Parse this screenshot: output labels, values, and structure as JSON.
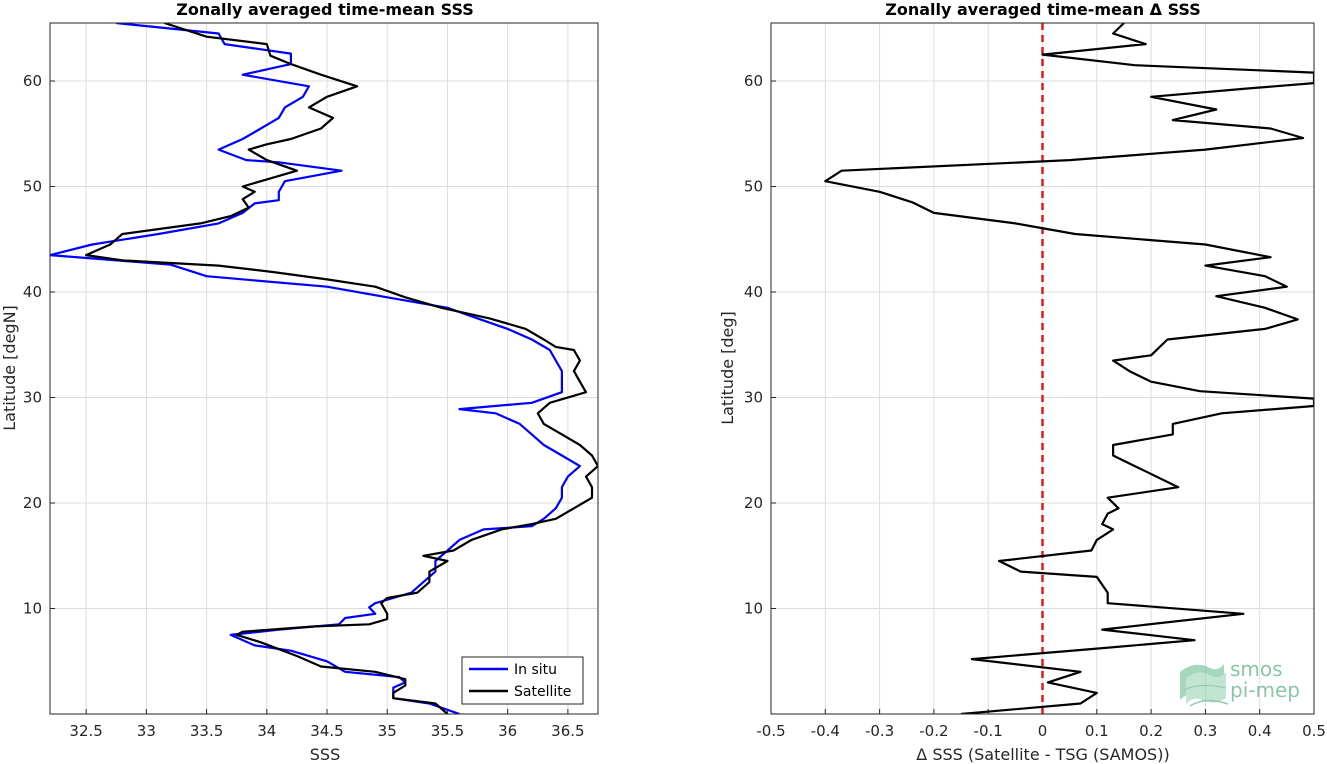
{
  "chart_data": [
    {
      "type": "line",
      "title": "Zonally averaged time-mean SSS",
      "xlabel": "SSS",
      "ylabel": "Latitude [degN]",
      "xlim": [
        32.2,
        36.75
      ],
      "ylim": [
        0,
        65.5
      ],
      "xticks": [
        "32.5",
        "33",
        "33.5",
        "34",
        "34.5",
        "35",
        "35.5",
        "36",
        "36.5"
      ],
      "yticks": [
        "10",
        "20",
        "30",
        "40",
        "50",
        "60"
      ],
      "grid": true,
      "legend": "bottom-right",
      "series": [
        {
          "name": "In situ",
          "color": "#0000ff",
          "points": [
            [
              32.75,
              65.5
            ],
            [
              33.6,
              64.5
            ],
            [
              33.65,
              63.5
            ],
            [
              34.2,
              62.6
            ],
            [
              34.2,
              61.6
            ],
            [
              33.8,
              60.6
            ],
            [
              34.35,
              59.5
            ],
            [
              34.3,
              58.5
            ],
            [
              34.15,
              57.5
            ],
            [
              34.1,
              56.5
            ],
            [
              33.95,
              55.5
            ],
            [
              33.8,
              54.5
            ],
            [
              33.6,
              53.5
            ],
            [
              33.83,
              52.5
            ],
            [
              34.1,
              52.3
            ],
            [
              34.62,
              51.5
            ],
            [
              34.15,
              50.5
            ],
            [
              34.1,
              49.5
            ],
            [
              34.1,
              48.7
            ],
            [
              33.9,
              48.4
            ],
            [
              33.8,
              47.5
            ],
            [
              33.6,
              46.5
            ],
            [
              33.1,
              45.5
            ],
            [
              32.55,
              44.5
            ],
            [
              32.2,
              43.5
            ],
            [
              33.2,
              42.6
            ],
            [
              33.5,
              41.5
            ],
            [
              34.5,
              40.5
            ],
            [
              35.0,
              39.5
            ],
            [
              35.5,
              38.5
            ],
            [
              35.75,
              37.5
            ],
            [
              36.0,
              36.5
            ],
            [
              36.2,
              35.5
            ],
            [
              36.35,
              34.5
            ],
            [
              36.4,
              33.5
            ],
            [
              36.45,
              32.5
            ],
            [
              36.45,
              31.5
            ],
            [
              36.45,
              30.5
            ],
            [
              36.2,
              29.5
            ],
            [
              35.6,
              28.9
            ],
            [
              35.9,
              28.5
            ],
            [
              36.1,
              27.5
            ],
            [
              36.2,
              26.5
            ],
            [
              36.3,
              25.5
            ],
            [
              36.45,
              24.5
            ],
            [
              36.6,
              23.5
            ],
            [
              36.5,
              22.5
            ],
            [
              36.45,
              21.5
            ],
            [
              36.45,
              20.5
            ],
            [
              36.4,
              19.5
            ],
            [
              36.3,
              18.5
            ],
            [
              36.2,
              17.8
            ],
            [
              35.8,
              17.5
            ],
            [
              35.6,
              16.5
            ],
            [
              35.5,
              15.5
            ],
            [
              35.4,
              14.5
            ],
            [
              35.4,
              13.5
            ],
            [
              35.3,
              12.5
            ],
            [
              35.2,
              11.5
            ],
            [
              34.9,
              10.5
            ],
            [
              34.85,
              10.1
            ],
            [
              34.9,
              9.5
            ],
            [
              34.65,
              9.1
            ],
            [
              34.6,
              8.5
            ],
            [
              34.1,
              8.0
            ],
            [
              33.7,
              7.5
            ],
            [
              33.9,
              6.5
            ],
            [
              34.2,
              6.0
            ],
            [
              34.5,
              5.0
            ],
            [
              34.65,
              4.0
            ],
            [
              35.1,
              3.5
            ],
            [
              35.15,
              3.0
            ],
            [
              35.05,
              2.5
            ],
            [
              35.05,
              1.5
            ],
            [
              35.35,
              1.0
            ],
            [
              35.6,
              0.0
            ]
          ]
        },
        {
          "name": "Satellite",
          "color": "#000000",
          "points": [
            [
              33.15,
              65.5
            ],
            [
              33.5,
              64.2
            ],
            [
              34.0,
              63.5
            ],
            [
              34.03,
              62.4
            ],
            [
              34.2,
              61.6
            ],
            [
              34.45,
              60.6
            ],
            [
              34.75,
              59.5
            ],
            [
              34.5,
              58.5
            ],
            [
              34.35,
              57.5
            ],
            [
              34.55,
              56.5
            ],
            [
              34.45,
              55.5
            ],
            [
              34.2,
              54.5
            ],
            [
              34.0,
              54.0
            ],
            [
              33.85,
              53.5
            ],
            [
              34.0,
              52.5
            ],
            [
              34.25,
              51.5
            ],
            [
              33.95,
              50.5
            ],
            [
              33.8,
              50.0
            ],
            [
              33.9,
              49.5
            ],
            [
              33.8,
              48.8
            ],
            [
              33.85,
              48.0
            ],
            [
              33.7,
              47.2
            ],
            [
              33.45,
              46.5
            ],
            [
              32.8,
              45.5
            ],
            [
              32.75,
              45.0
            ],
            [
              32.7,
              44.5
            ],
            [
              32.5,
              43.5
            ],
            [
              32.8,
              43.0
            ],
            [
              33.6,
              42.5
            ],
            [
              34.05,
              41.9
            ],
            [
              34.5,
              41.2
            ],
            [
              34.9,
              40.5
            ],
            [
              35.15,
              39.5
            ],
            [
              35.45,
              38.5
            ],
            [
              35.85,
              37.5
            ],
            [
              36.15,
              36.5
            ],
            [
              36.3,
              35.5
            ],
            [
              36.4,
              34.8
            ],
            [
              36.55,
              34.5
            ],
            [
              36.6,
              33.5
            ],
            [
              36.55,
              32.5
            ],
            [
              36.6,
              31.5
            ],
            [
              36.65,
              30.5
            ],
            [
              36.35,
              29.5
            ],
            [
              36.25,
              28.5
            ],
            [
              36.3,
              27.5
            ],
            [
              36.45,
              26.5
            ],
            [
              36.6,
              25.5
            ],
            [
              36.7,
              24.5
            ],
            [
              36.75,
              23.5
            ],
            [
              36.65,
              22.5
            ],
            [
              36.7,
              21.5
            ],
            [
              36.7,
              20.5
            ],
            [
              36.55,
              19.5
            ],
            [
              36.4,
              18.5
            ],
            [
              36.2,
              18.0
            ],
            [
              35.95,
              17.5
            ],
            [
              35.7,
              16.5
            ],
            [
              35.55,
              15.5
            ],
            [
              35.3,
              15.0
            ],
            [
              35.5,
              14.5
            ],
            [
              35.35,
              13.5
            ],
            [
              35.35,
              12.5
            ],
            [
              35.25,
              11.5
            ],
            [
              35.0,
              11.0
            ],
            [
              34.95,
              10.5
            ],
            [
              35.0,
              9.5
            ],
            [
              35.0,
              9.0
            ],
            [
              34.85,
              8.5
            ],
            [
              34.4,
              8.3
            ],
            [
              33.8,
              7.8
            ],
            [
              33.75,
              7.5
            ],
            [
              33.95,
              6.8
            ],
            [
              34.25,
              5.5
            ],
            [
              34.45,
              4.5
            ],
            [
              34.9,
              4.0
            ],
            [
              35.15,
              3.3
            ],
            [
              35.15,
              2.7
            ],
            [
              35.05,
              2.0
            ],
            [
              35.05,
              1.5
            ],
            [
              35.4,
              1.0
            ],
            [
              35.5,
              0.0
            ]
          ]
        }
      ]
    },
    {
      "type": "line",
      "title": "Zonally averaged time-mean Δ SSS",
      "xlabel": "Δ SSS (Satellite - TSG (SAMOS))",
      "ylabel": "Latitude [deg]",
      "xlim": [
        -0.5,
        0.5
      ],
      "ylim": [
        0,
        65.5
      ],
      "xticks": [
        "-0.5",
        "-0.4",
        "-0.3",
        "-0.2",
        "-0.1",
        "0",
        "0.1",
        "0.2",
        "0.3",
        "0.4",
        "0.5"
      ],
      "yticks": [
        "10",
        "20",
        "30",
        "40",
        "50",
        "60"
      ],
      "grid": true,
      "reference_line": {
        "x": 0,
        "color": "#e31a1c",
        "style": "dashed"
      },
      "series": [
        {
          "color": "#000000",
          "points": [
            [
              0.15,
              65.5
            ],
            [
              0.13,
              64.5
            ],
            [
              0.19,
              63.5
            ],
            [
              0.0,
              62.5
            ],
            [
              0.17,
              61.5
            ],
            [
              0.5,
              60.8
            ],
            [
              0.5,
              59.8
            ],
            [
              0.38,
              59.3
            ],
            [
              0.2,
              58.5
            ],
            [
              0.32,
              57.3
            ],
            [
              0.24,
              56.3
            ],
            [
              0.42,
              55.5
            ],
            [
              0.48,
              54.6
            ],
            [
              0.3,
              53.5
            ],
            [
              0.05,
              52.5
            ],
            [
              -0.37,
              51.5
            ],
            [
              -0.4,
              50.5
            ],
            [
              -0.3,
              49.5
            ],
            [
              -0.24,
              48.5
            ],
            [
              -0.2,
              47.5
            ],
            [
              -0.05,
              46.5
            ],
            [
              0.06,
              45.5
            ],
            [
              0.3,
              44.5
            ],
            [
              0.42,
              43.3
            ],
            [
              0.3,
              42.5
            ],
            [
              0.41,
              41.5
            ],
            [
              0.45,
              40.5
            ],
            [
              0.32,
              39.6
            ],
            [
              0.41,
              38.5
            ],
            [
              0.47,
              37.4
            ],
            [
              0.41,
              36.5
            ],
            [
              0.23,
              35.5
            ],
            [
              0.2,
              34.0
            ],
            [
              0.13,
              33.5
            ],
            [
              0.16,
              32.5
            ],
            [
              0.2,
              31.5
            ],
            [
              0.29,
              30.6
            ],
            [
              0.5,
              29.9
            ],
            [
              0.5,
              29.2
            ],
            [
              0.33,
              28.5
            ],
            [
              0.24,
              27.5
            ],
            [
              0.24,
              26.5
            ],
            [
              0.13,
              25.5
            ],
            [
              0.13,
              24.5
            ],
            [
              0.17,
              23.5
            ],
            [
              0.25,
              21.5
            ],
            [
              0.12,
              20.5
            ],
            [
              0.14,
              19.5
            ],
            [
              0.12,
              19.0
            ],
            [
              0.11,
              18.0
            ],
            [
              0.13,
              17.5
            ],
            [
              0.1,
              16.5
            ],
            [
              0.09,
              15.5
            ],
            [
              -0.08,
              14.5
            ],
            [
              -0.04,
              13.5
            ],
            [
              0.1,
              13.0
            ],
            [
              0.12,
              11.5
            ],
            [
              0.12,
              10.5
            ],
            [
              0.37,
              9.5
            ],
            [
              0.11,
              8.0
            ],
            [
              0.28,
              7.0
            ],
            [
              0.1,
              6.2
            ],
            [
              -0.13,
              5.2
            ],
            [
              0.07,
              4.0
            ],
            [
              0.01,
              3.0
            ],
            [
              0.1,
              2.0
            ],
            [
              0.07,
              1.0
            ],
            [
              -0.15,
              0.0
            ]
          ]
        }
      ]
    }
  ],
  "legend": {
    "insitu_label": "In situ",
    "satellite_label": "Satellite"
  },
  "logo": {
    "line1": "smos",
    "line2": "pi-mep",
    "color": "#2e8b57"
  }
}
